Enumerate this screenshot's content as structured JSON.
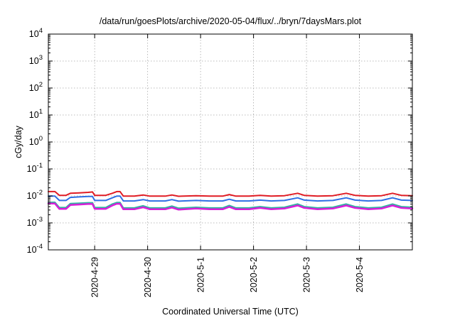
{
  "chart_data": {
    "type": "line",
    "title": "/data/run/goesPlots/archive/2020-05-04/flux/../bryn/7daysMars.plot",
    "xlabel": "Coordinated Universal Time (UTC)",
    "ylabel": "cGy/day",
    "yscale": "log",
    "ylim": [
      0.0001,
      10000
    ],
    "yticks": [
      {
        "value": 0.0001,
        "base": "10",
        "exp": "-4"
      },
      {
        "value": 0.001,
        "base": "10",
        "exp": "-3"
      },
      {
        "value": 0.01,
        "base": "10",
        "exp": "-2"
      },
      {
        "value": 0.1,
        "base": "10",
        "exp": "-1"
      },
      {
        "value": 1,
        "base": "10",
        "exp": "0"
      },
      {
        "value": 10,
        "base": "10",
        "exp": "1"
      },
      {
        "value": 100,
        "base": "10",
        "exp": "2"
      },
      {
        "value": 1000,
        "base": "10",
        "exp": "3"
      },
      {
        "value": 10000,
        "base": "10",
        "exp": "4"
      }
    ],
    "xlim": [
      "2020-04-28 03:00",
      "2020-05-04 23:59"
    ],
    "xticks": [
      {
        "value": "2020-04-29 00:00",
        "label": "2020-4-29"
      },
      {
        "value": "2020-04-30 00:00",
        "label": "2020-4-30"
      },
      {
        "value": "2020-05-01 00:00",
        "label": "2020-5-1"
      },
      {
        "value": "2020-05-02 00:00",
        "label": "2020-5-2"
      },
      {
        "value": "2020-05-03 00:00",
        "label": "2020-5-3"
      },
      {
        "value": "2020-05-04 00:00",
        "label": "2020-5-4"
      }
    ],
    "grid": true,
    "legend": "none",
    "series": [
      {
        "color": "#e01c24",
        "width": 2,
        "points": [
          [
            "2020-04-28 03:00",
            0.0145
          ],
          [
            "2020-04-28 06:00",
            0.0145
          ],
          [
            "2020-04-28 08:00",
            0.0105
          ],
          [
            "2020-04-28 11:00",
            0.0105
          ],
          [
            "2020-04-28 13:00",
            0.0125
          ],
          [
            "2020-04-28 17:00",
            0.013
          ],
          [
            "2020-04-28 21:00",
            0.0135
          ],
          [
            "2020-04-28 23:00",
            0.014
          ],
          [
            "2020-04-29 00:00",
            0.0105
          ],
          [
            "2020-04-29 05:00",
            0.0105
          ],
          [
            "2020-04-29 08:00",
            0.0125
          ],
          [
            "2020-04-29 10:00",
            0.0145
          ],
          [
            "2020-04-29 11:30",
            0.0145
          ],
          [
            "2020-04-29 13:00",
            0.0098
          ],
          [
            "2020-04-29 18:00",
            0.0098
          ],
          [
            "2020-04-29 22:00",
            0.0108
          ],
          [
            "2020-04-30 01:00",
            0.0098
          ],
          [
            "2020-04-30 08:00",
            0.0098
          ],
          [
            "2020-04-30 11:00",
            0.0108
          ],
          [
            "2020-04-30 14:00",
            0.0097
          ],
          [
            "2020-04-30 22:00",
            0.0102
          ],
          [
            "2020-05-01 04:00",
            0.0098
          ],
          [
            "2020-05-01 10:00",
            0.0098
          ],
          [
            "2020-05-01 13:00",
            0.0112
          ],
          [
            "2020-05-01 16:00",
            0.0098
          ],
          [
            "2020-05-01 22:00",
            0.0098
          ],
          [
            "2020-05-02 03:00",
            0.0105
          ],
          [
            "2020-05-02 08:00",
            0.0098
          ],
          [
            "2020-05-02 14:00",
            0.0102
          ],
          [
            "2020-05-02 20:00",
            0.0125
          ],
          [
            "2020-05-02 23:00",
            0.0105
          ],
          [
            "2020-05-03 05:00",
            0.0098
          ],
          [
            "2020-05-03 12:00",
            0.0102
          ],
          [
            "2020-05-03 18:00",
            0.0125
          ],
          [
            "2020-05-03 22:00",
            0.0105
          ],
          [
            "2020-05-04 04:00",
            0.0098
          ],
          [
            "2020-05-04 10:00",
            0.0102
          ],
          [
            "2020-05-04 15:00",
            0.0125
          ],
          [
            "2020-05-04 19:00",
            0.0105
          ],
          [
            "2020-05-04 23:59",
            0.0102
          ]
        ]
      },
      {
        "color": "#2f6fe4",
        "width": 2,
        "points": [
          [
            "2020-04-28 03:00",
            0.0098
          ],
          [
            "2020-04-28 06:00",
            0.0098
          ],
          [
            "2020-04-28 08:00",
            0.0068
          ],
          [
            "2020-04-28 11:00",
            0.0068
          ],
          [
            "2020-04-28 13:00",
            0.0088
          ],
          [
            "2020-04-28 17:00",
            0.0092
          ],
          [
            "2020-04-28 21:00",
            0.0095
          ],
          [
            "2020-04-28 23:00",
            0.0095
          ],
          [
            "2020-04-29 00:00",
            0.0068
          ],
          [
            "2020-04-29 05:00",
            0.0068
          ],
          [
            "2020-04-29 08:00",
            0.0085
          ],
          [
            "2020-04-29 10:00",
            0.0098
          ],
          [
            "2020-04-29 11:30",
            0.0098
          ],
          [
            "2020-04-29 13:00",
            0.0065
          ],
          [
            "2020-04-29 18:00",
            0.0065
          ],
          [
            "2020-04-29 22:00",
            0.0073
          ],
          [
            "2020-04-30 01:00",
            0.0065
          ],
          [
            "2020-04-30 08:00",
            0.0065
          ],
          [
            "2020-04-30 11:00",
            0.0073
          ],
          [
            "2020-04-30 14:00",
            0.0064
          ],
          [
            "2020-04-30 22:00",
            0.0068
          ],
          [
            "2020-05-01 04:00",
            0.0065
          ],
          [
            "2020-05-01 10:00",
            0.0065
          ],
          [
            "2020-05-01 13:00",
            0.0075
          ],
          [
            "2020-05-01 16:00",
            0.0065
          ],
          [
            "2020-05-01 22:00",
            0.0065
          ],
          [
            "2020-05-02 03:00",
            0.007
          ],
          [
            "2020-05-02 08:00",
            0.0065
          ],
          [
            "2020-05-02 14:00",
            0.0068
          ],
          [
            "2020-05-02 20:00",
            0.0085
          ],
          [
            "2020-05-02 23:00",
            0.007
          ],
          [
            "2020-05-03 05:00",
            0.0065
          ],
          [
            "2020-05-03 12:00",
            0.0068
          ],
          [
            "2020-05-03 18:00",
            0.0085
          ],
          [
            "2020-05-03 22:00",
            0.007
          ],
          [
            "2020-05-04 04:00",
            0.0065
          ],
          [
            "2020-05-04 10:00",
            0.0068
          ],
          [
            "2020-05-04 15:00",
            0.0085
          ],
          [
            "2020-05-04 19:00",
            0.007
          ],
          [
            "2020-05-04 23:59",
            0.0068
          ]
        ]
      },
      {
        "color": "#2fb5a0",
        "width": 2,
        "points": [
          [
            "2020-04-28 03:00",
            0.0058
          ],
          [
            "2020-04-28 06:00",
            0.0058
          ],
          [
            "2020-04-28 08:00",
            0.0037
          ],
          [
            "2020-04-28 11:00",
            0.0037
          ],
          [
            "2020-04-28 13:00",
            0.0052
          ],
          [
            "2020-04-28 17:00",
            0.0054
          ],
          [
            "2020-04-28 21:00",
            0.0056
          ],
          [
            "2020-04-28 23:00",
            0.0056
          ],
          [
            "2020-04-29 00:00",
            0.0037
          ],
          [
            "2020-04-29 05:00",
            0.0037
          ],
          [
            "2020-04-29 08:00",
            0.005
          ],
          [
            "2020-04-29 10:00",
            0.0057
          ],
          [
            "2020-04-29 11:30",
            0.0057
          ],
          [
            "2020-04-29 13:00",
            0.0036
          ],
          [
            "2020-04-29 18:00",
            0.0036
          ],
          [
            "2020-04-29 22:00",
            0.0043
          ],
          [
            "2020-04-30 01:00",
            0.0036
          ],
          [
            "2020-04-30 08:00",
            0.0036
          ],
          [
            "2020-04-30 11:00",
            0.0042
          ],
          [
            "2020-04-30 14:00",
            0.0035
          ],
          [
            "2020-04-30 22:00",
            0.0038
          ],
          [
            "2020-05-01 04:00",
            0.0036
          ],
          [
            "2020-05-01 10:00",
            0.0036
          ],
          [
            "2020-05-01 13:00",
            0.0044
          ],
          [
            "2020-05-01 16:00",
            0.0036
          ],
          [
            "2020-05-01 22:00",
            0.0036
          ],
          [
            "2020-05-02 03:00",
            0.004
          ],
          [
            "2020-05-02 08:00",
            0.0036
          ],
          [
            "2020-05-02 14:00",
            0.0038
          ],
          [
            "2020-05-02 20:00",
            0.005
          ],
          [
            "2020-05-02 23:00",
            0.004
          ],
          [
            "2020-05-03 05:00",
            0.0036
          ],
          [
            "2020-05-03 12:00",
            0.0038
          ],
          [
            "2020-05-03 18:00",
            0.005
          ],
          [
            "2020-05-03 22:00",
            0.004
          ],
          [
            "2020-05-04 04:00",
            0.0036
          ],
          [
            "2020-05-04 10:00",
            0.0038
          ],
          [
            "2020-05-04 15:00",
            0.005
          ],
          [
            "2020-05-04 19:00",
            0.004
          ],
          [
            "2020-05-04 23:59",
            0.0038
          ]
        ]
      },
      {
        "color": "#d81fd8",
        "width": 2.5,
        "points": [
          [
            "2020-04-28 03:00",
            0.0052
          ],
          [
            "2020-04-28 06:00",
            0.0052
          ],
          [
            "2020-04-28 08:00",
            0.0033
          ],
          [
            "2020-04-28 11:00",
            0.0033
          ],
          [
            "2020-04-28 13:00",
            0.0046
          ],
          [
            "2020-04-28 17:00",
            0.0048
          ],
          [
            "2020-04-28 21:00",
            0.005
          ],
          [
            "2020-04-28 23:00",
            0.005
          ],
          [
            "2020-04-29 00:00",
            0.0033
          ],
          [
            "2020-04-29 05:00",
            0.0033
          ],
          [
            "2020-04-29 08:00",
            0.0044
          ],
          [
            "2020-04-29 10:00",
            0.0051
          ],
          [
            "2020-04-29 11:30",
            0.0051
          ],
          [
            "2020-04-29 13:00",
            0.0032
          ],
          [
            "2020-04-29 18:00",
            0.0032
          ],
          [
            "2020-04-29 22:00",
            0.0038
          ],
          [
            "2020-04-30 01:00",
            0.0032
          ],
          [
            "2020-04-30 08:00",
            0.0032
          ],
          [
            "2020-04-30 11:00",
            0.0037
          ],
          [
            "2020-04-30 14:00",
            0.0031
          ],
          [
            "2020-04-30 22:00",
            0.0034
          ],
          [
            "2020-05-01 04:00",
            0.0032
          ],
          [
            "2020-05-01 10:00",
            0.0032
          ],
          [
            "2020-05-01 13:00",
            0.0039
          ],
          [
            "2020-05-01 16:00",
            0.0032
          ],
          [
            "2020-05-01 22:00",
            0.0032
          ],
          [
            "2020-05-02 03:00",
            0.0036
          ],
          [
            "2020-05-02 08:00",
            0.0032
          ],
          [
            "2020-05-02 14:00",
            0.0034
          ],
          [
            "2020-05-02 20:00",
            0.0044
          ],
          [
            "2020-05-02 23:00",
            0.0036
          ],
          [
            "2020-05-03 05:00",
            0.0032
          ],
          [
            "2020-05-03 12:00",
            0.0034
          ],
          [
            "2020-05-03 18:00",
            0.0044
          ],
          [
            "2020-05-03 22:00",
            0.0036
          ],
          [
            "2020-05-04 04:00",
            0.0032
          ],
          [
            "2020-05-04 10:00",
            0.0034
          ],
          [
            "2020-05-04 15:00",
            0.0044
          ],
          [
            "2020-05-04 19:00",
            0.0036
          ],
          [
            "2020-05-04 23:59",
            0.0034
          ]
        ]
      }
    ]
  }
}
